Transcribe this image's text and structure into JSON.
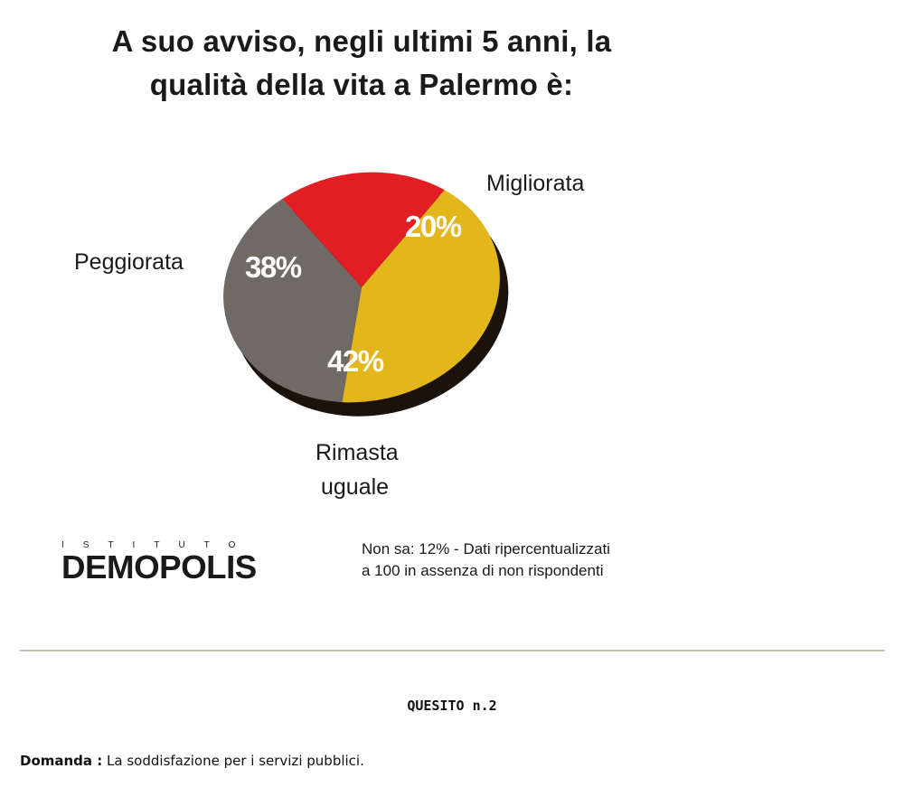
{
  "chart_data": {
    "type": "pie",
    "title": "A suo avviso, negli ultimi 5 anni, la qualità della vita a Palermo è:",
    "slices": [
      {
        "name": "Migliorata",
        "value": 20,
        "label": "20%",
        "color": "#e01e24"
      },
      {
        "name": "Rimasta uguale",
        "value": 42,
        "label": "42%",
        "color": "#e3b71c"
      },
      {
        "name": "Peggiorata",
        "value": 38,
        "label": "38%",
        "color": "#6f6a66"
      }
    ],
    "note": "Non sa: 12% - Dati ripercentualizzati a 100 in assenza di non rispondenti"
  },
  "title_lines": [
    "A suo avviso, negli ultimi 5 anni, la",
    "qualità della vita a Palermo è:"
  ],
  "labels": {
    "migliorata": "Migliorata",
    "peggiorata": "Peggiorata",
    "rimasta_line1": "Rimasta",
    "rimasta_line2": "uguale",
    "pct_migliorata": "20%",
    "pct_peggiorata": "38%",
    "pct_rimasta": "42%"
  },
  "note_lines": [
    "Non sa: 12% - Dati ripercentualizzati",
    "a 100 in assenza di non rispondenti"
  ],
  "brand": {
    "top": "ISTITUTO",
    "name": "DEMOPOLIS"
  },
  "question": {
    "heading": "QUESITO n.2",
    "key": "Domanda :",
    "text": " La soddisfazione per i servizi pubblici."
  },
  "colors": {
    "migliorata": "#e01e24",
    "rimasta": "#e3b71c",
    "peggiorata": "#6f6a66",
    "pie_edge": "#1b120c",
    "divider": "#c9c3a8"
  }
}
